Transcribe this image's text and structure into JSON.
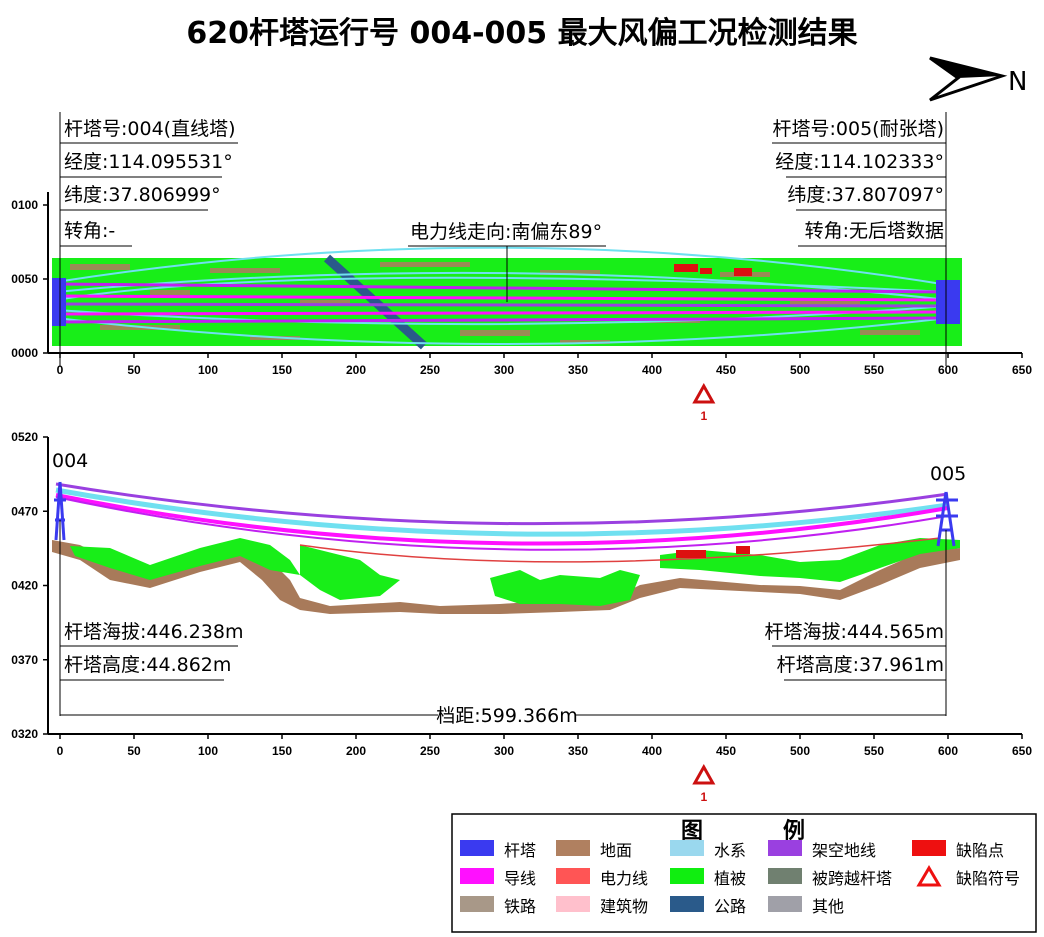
{
  "title": "620杆塔运行号 004-005 最大风偏工况检测结果",
  "north_label": "N",
  "top_view": {
    "y_ticks": [
      "0100",
      "0050",
      "0000"
    ],
    "x_ticks": [
      "0",
      "50",
      "100",
      "150",
      "200",
      "250",
      "300",
      "350",
      "400",
      "450",
      "500",
      "550",
      "600",
      "650"
    ],
    "tower_left": {
      "number": "杆塔号:004(直线塔)",
      "longitude": "经度:114.095531°",
      "latitude": "纬度:37.806999°",
      "angle": "转角:-"
    },
    "tower_right": {
      "number": "杆塔号:005(耐张塔)",
      "longitude": "经度:114.102333°",
      "latitude": "纬度:37.807097°",
      "angle": "转角:无后塔数据"
    },
    "direction": "电力线走向:南偏东89°",
    "defect_marker": "1",
    "defect_position": 435
  },
  "profile_view": {
    "y_ticks": [
      "0520",
      "0470",
      "0420",
      "0370",
      "0320"
    ],
    "x_ticks": [
      "0",
      "50",
      "100",
      "150",
      "200",
      "250",
      "300",
      "350",
      "400",
      "450",
      "500",
      "550",
      "600",
      "650"
    ],
    "tower_left_id": "004",
    "tower_right_id": "005",
    "left_altitude": "杆塔海拔:446.238m",
    "left_height": "杆塔高度:44.862m",
    "right_altitude": "杆塔海拔:444.565m",
    "right_height": "杆塔高度:37.961m",
    "span": "档距:599.366m",
    "defect_marker": "1",
    "defect_position": 435
  },
  "legend": {
    "title_left": "图",
    "title_right": "例",
    "items": [
      {
        "label": "杆塔",
        "color": "#3a3af0"
      },
      {
        "label": "地面",
        "color": "#b08060"
      },
      {
        "label": "水系",
        "color": "#9ad8ee"
      },
      {
        "label": "架空地线",
        "color": "#9a40e0"
      },
      {
        "label": "缺陷点",
        "color": "#ee1010"
      },
      {
        "label": "导线",
        "color": "#ff10ff"
      },
      {
        "label": "电力线",
        "color": "#ff5555"
      },
      {
        "label": "植被",
        "color": "#10ee10"
      },
      {
        "label": "被跨越杆塔",
        "color": "#708070"
      },
      {
        "label": "缺陷符号",
        "color": "#ee1010"
      },
      {
        "label": "铁路",
        "color": "#a89888"
      },
      {
        "label": "建筑物",
        "color": "#ffc0cc"
      },
      {
        "label": "公路",
        "color": "#2a5a8a"
      },
      {
        "label": "其他",
        "color": "#a0a0a8"
      }
    ]
  }
}
